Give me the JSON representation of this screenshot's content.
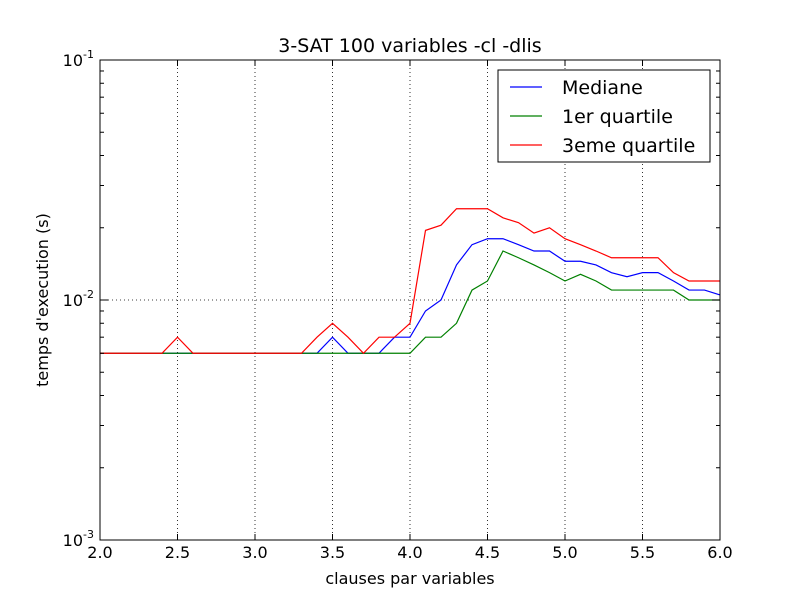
{
  "chart_data": {
    "type": "line",
    "title": "3-SAT 100 variables -cl -dlis",
    "xlabel": "clauses par variables",
    "ylabel": "temps d'execution (s)",
    "xlim": [
      2.0,
      6.0
    ],
    "ylim": [
      0.001,
      0.1
    ],
    "yscale": "log",
    "grid": true,
    "legend_position": "top-right",
    "x_ticks": [
      "2.0",
      "2.5",
      "3.0",
      "3.5",
      "4.0",
      "4.5",
      "5.0",
      "5.5",
      "6.0"
    ],
    "y_ticks": [
      {
        "base": "10",
        "exp": "-3",
        "value": 0.001
      },
      {
        "base": "10",
        "exp": "-2",
        "value": 0.01
      },
      {
        "base": "10",
        "exp": "-1",
        "value": 0.1
      }
    ],
    "x": [
      2.0,
      2.1,
      2.2,
      2.3,
      2.4,
      2.5,
      2.6,
      2.7,
      2.8,
      2.9,
      3.0,
      3.1,
      3.2,
      3.3,
      3.4,
      3.5,
      3.6,
      3.7,
      3.8,
      3.9,
      4.0,
      4.1,
      4.2,
      4.3,
      4.4,
      4.5,
      4.6,
      4.7,
      4.8,
      4.9,
      5.0,
      5.1,
      5.2,
      5.3,
      5.4,
      5.5,
      5.6,
      5.7,
      5.8,
      5.9,
      6.0
    ],
    "series": [
      {
        "name": "Mediane",
        "color": "#0000ff",
        "values": [
          0.006,
          0.006,
          0.006,
          0.006,
          0.006,
          0.006,
          0.006,
          0.006,
          0.006,
          0.006,
          0.006,
          0.006,
          0.006,
          0.006,
          0.006,
          0.007,
          0.006,
          0.006,
          0.006,
          0.007,
          0.007,
          0.009,
          0.01,
          0.014,
          0.017,
          0.018,
          0.018,
          0.017,
          0.016,
          0.016,
          0.0145,
          0.0145,
          0.014,
          0.013,
          0.0125,
          0.013,
          0.013,
          0.012,
          0.011,
          0.011,
          0.0105
        ]
      },
      {
        "name": "1er quartile",
        "color": "#008000",
        "values": [
          0.006,
          0.006,
          0.006,
          0.006,
          0.006,
          0.006,
          0.006,
          0.006,
          0.006,
          0.006,
          0.006,
          0.006,
          0.006,
          0.006,
          0.006,
          0.006,
          0.006,
          0.006,
          0.006,
          0.006,
          0.006,
          0.007,
          0.007,
          0.008,
          0.011,
          0.012,
          0.016,
          0.015,
          0.014,
          0.013,
          0.012,
          0.0128,
          0.012,
          0.011,
          0.011,
          0.011,
          0.011,
          0.011,
          0.01,
          0.01,
          0.01
        ]
      },
      {
        "name": "3eme quartile",
        "color": "#ff0000",
        "values": [
          0.006,
          0.006,
          0.006,
          0.006,
          0.006,
          0.007,
          0.006,
          0.006,
          0.006,
          0.006,
          0.006,
          0.006,
          0.006,
          0.006,
          0.007,
          0.008,
          0.007,
          0.006,
          0.007,
          0.007,
          0.008,
          0.0195,
          0.0205,
          0.024,
          0.024,
          0.024,
          0.022,
          0.021,
          0.019,
          0.02,
          0.018,
          0.017,
          0.016,
          0.015,
          0.015,
          0.015,
          0.015,
          0.013,
          0.012,
          0.012,
          0.012
        ]
      }
    ]
  }
}
